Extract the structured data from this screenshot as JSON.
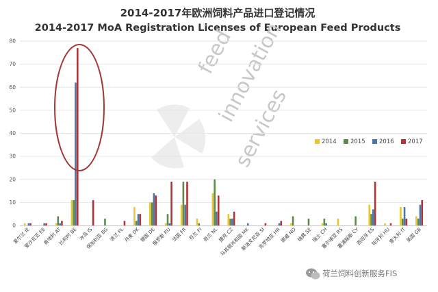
{
  "chart_data": {
    "type": "bar",
    "title": "2014-2017年欧洲饲料产品进口登记情况",
    "subtitle": "2014-2017 MoA Registration Licenses of European Feed Products",
    "ylim": [
      0,
      80
    ],
    "yticks": [
      0,
      10,
      20,
      30,
      40,
      50,
      60,
      70,
      80
    ],
    "grid": true,
    "legend_position": "right",
    "categories": [
      "爱尔兰 IE",
      "爱沙尼亚 EE",
      "奥地利 AT",
      "比利时 BE",
      "冰岛 IS",
      "保加利亚 BG",
      "波兰 PL",
      "丹麦 DK",
      "德国 DE",
      "俄罗斯 RU",
      "法国 FR",
      "芬兰 FI",
      "荷兰 NL",
      "捷克 CZ",
      "马其顿共和国 MK",
      "斯洛文尼亚 SI",
      "克罗地亚 HR",
      "挪威 NO",
      "瑞典 SE",
      "瑞士 CH",
      "塞尔维亚 RS",
      "塞浦路斯 CY",
      "西班牙 ES",
      "匈牙利 HU",
      "意大利 IT",
      "英国 GB"
    ],
    "series": [
      {
        "name": "2014",
        "color": "#e8c638",
        "values": [
          1,
          0,
          1,
          11,
          0,
          0,
          0,
          8,
          10,
          1,
          9,
          3,
          14,
          5,
          0,
          0,
          0,
          1,
          0,
          1,
          3,
          0,
          9,
          1,
          8,
          4
        ]
      },
      {
        "name": "2015",
        "color": "#5f8a4a",
        "values": [
          0,
          0,
          4,
          11,
          0,
          3,
          0,
          2,
          10,
          5,
          19,
          1,
          20,
          3,
          0,
          0,
          0,
          4,
          3,
          3,
          0,
          4,
          5,
          0,
          3,
          3
        ]
      },
      {
        "name": "2016",
        "color": "#4a77a8",
        "values": [
          1,
          1,
          1,
          62,
          0,
          0,
          0,
          5,
          14,
          1,
          9,
          0,
          6,
          3,
          1,
          0,
          1,
          0,
          0,
          1,
          0,
          0,
          7,
          0,
          8,
          9
        ]
      },
      {
        "name": "2017",
        "color": "#b03338",
        "values": [
          1,
          1,
          2,
          77,
          11,
          0,
          2,
          5,
          13,
          19,
          19,
          0,
          13,
          6,
          0,
          1,
          2,
          0,
          0,
          0,
          0,
          0,
          19,
          1,
          3,
          11
        ]
      }
    ]
  },
  "watermark": {
    "words": [
      "feed",
      "innovation",
      "services"
    ]
  },
  "footer": {
    "text": "荷兰饲料创新服务FIS"
  }
}
